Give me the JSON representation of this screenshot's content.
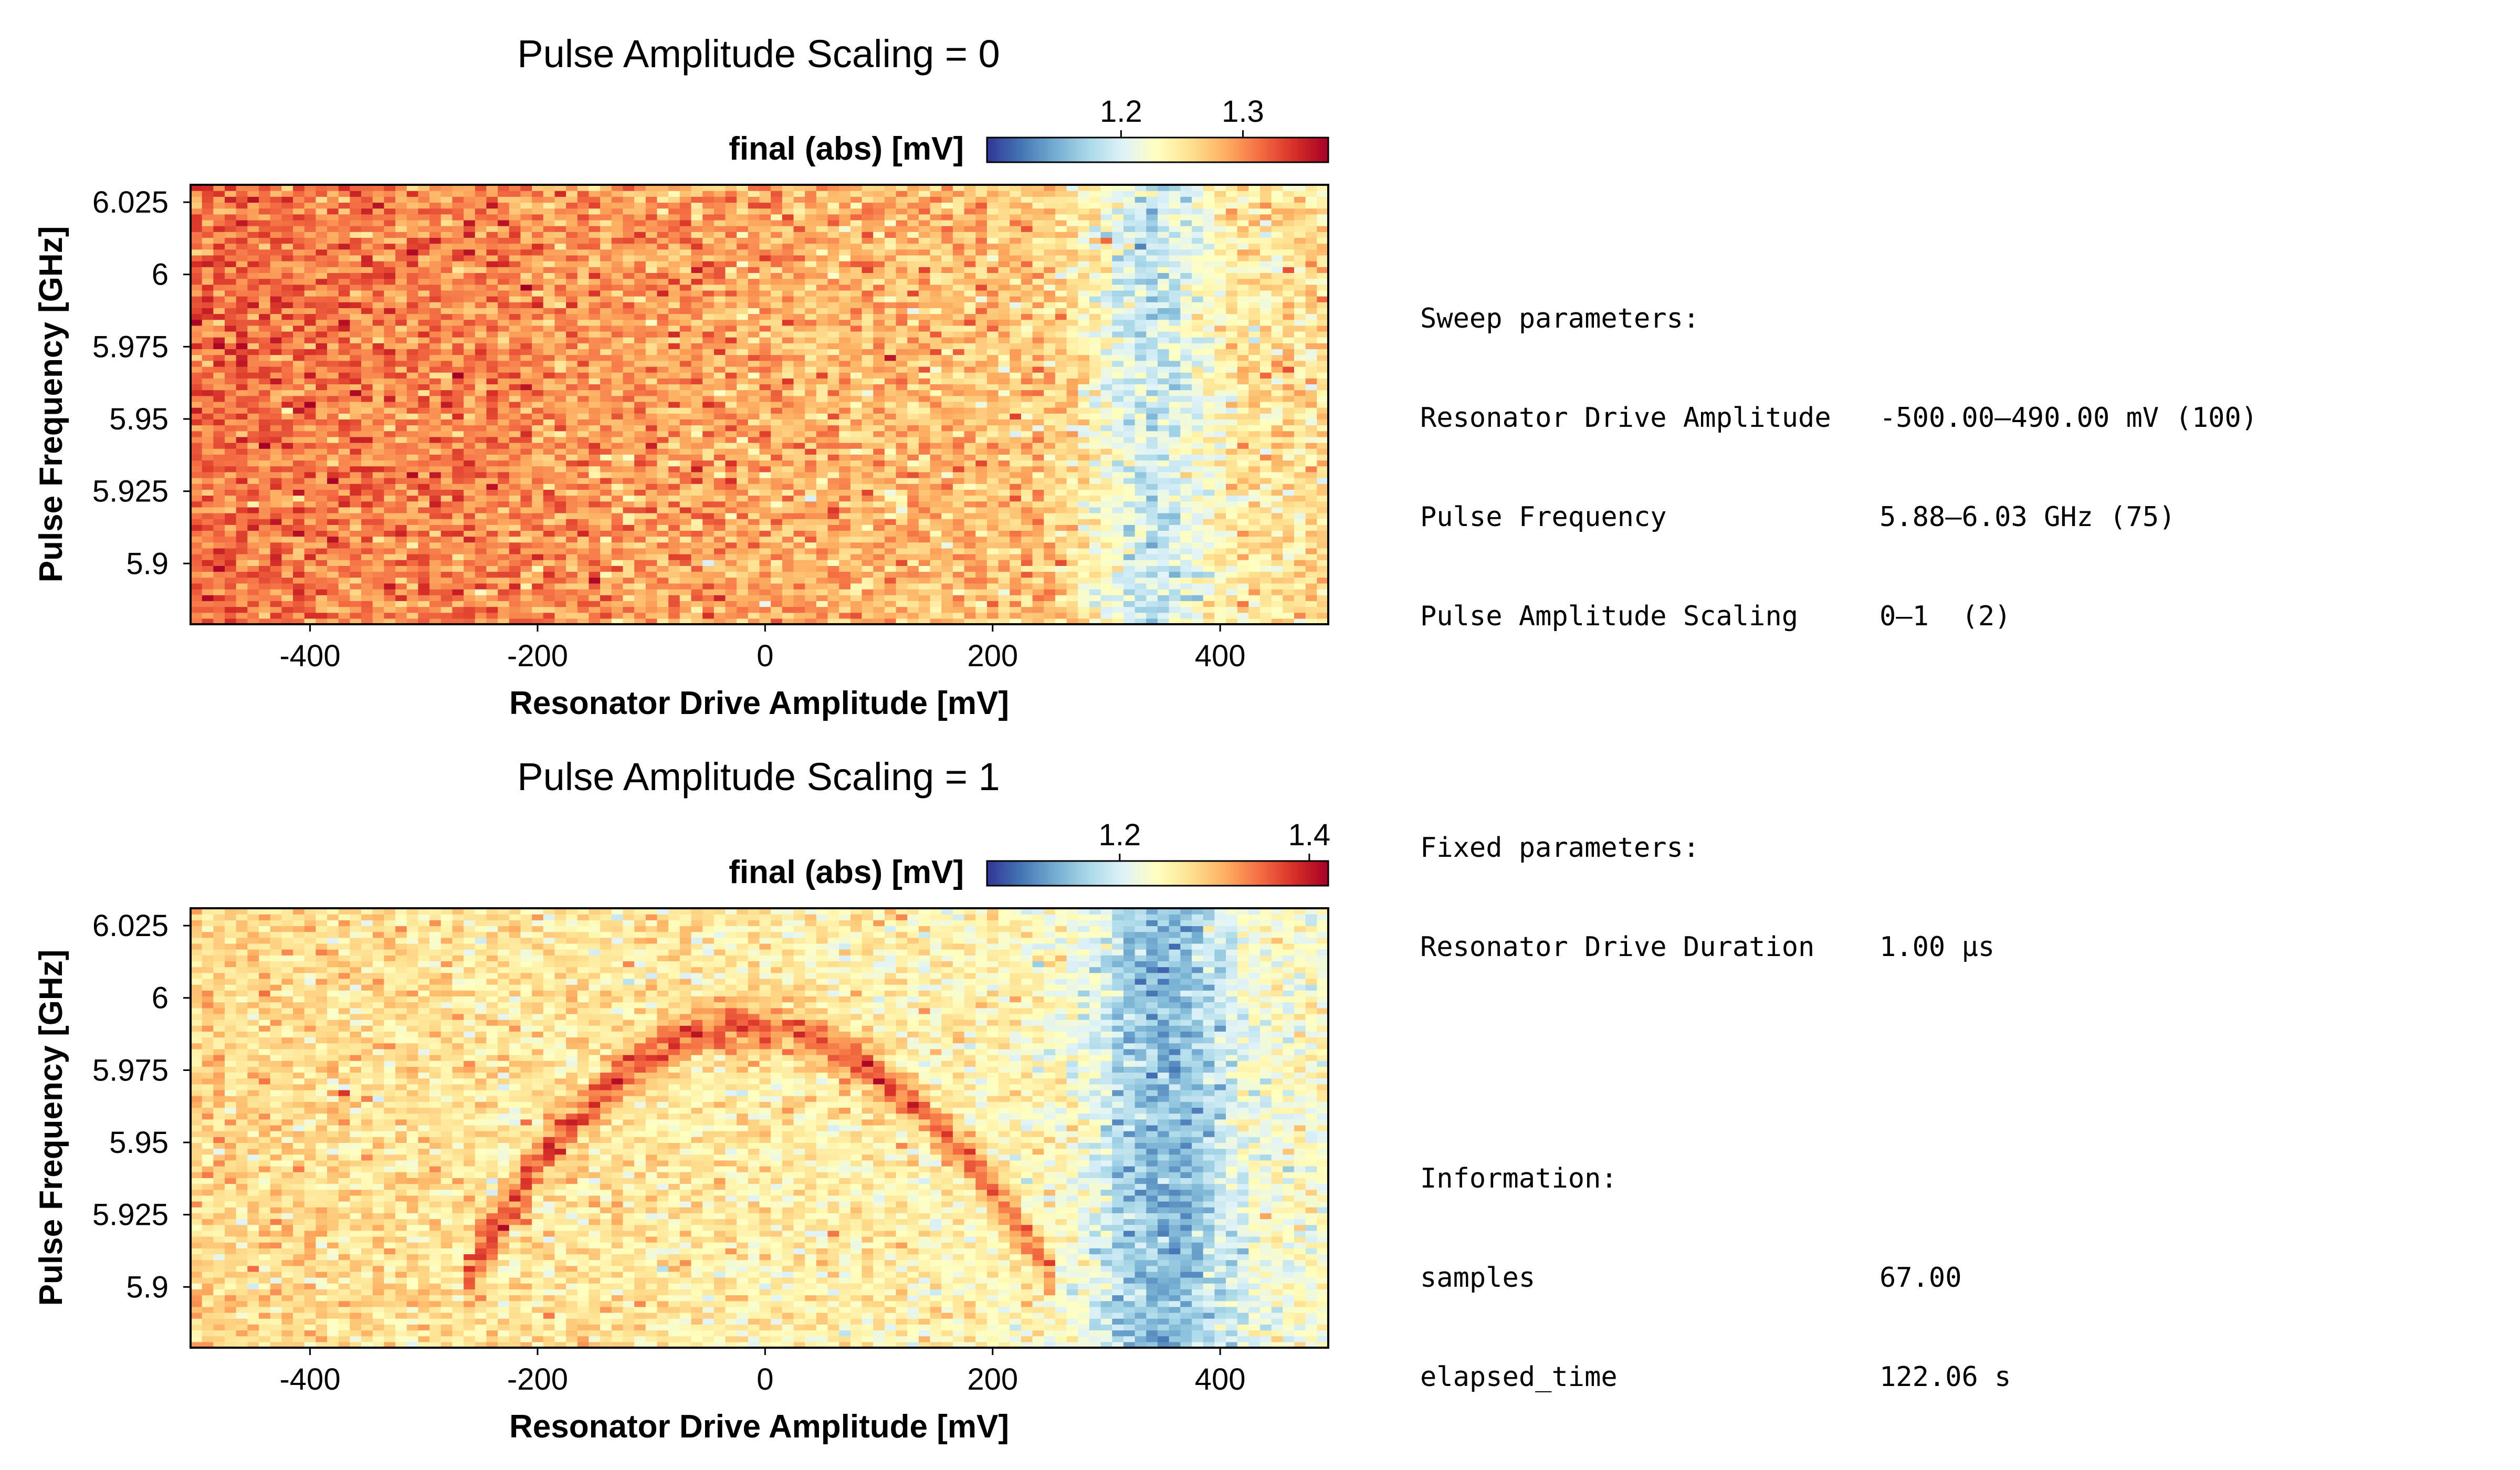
{
  "colormap": [
    "#313695",
    "#4575b4",
    "#74add1",
    "#abd9e9",
    "#e0f3f8",
    "#ffffbf",
    "#fee090",
    "#fdae61",
    "#f46d43",
    "#d73027",
    "#a50026"
  ],
  "chart_data": [
    {
      "type": "heatmap",
      "title": "Pulse Amplitude Scaling = 0",
      "xlabel": "Resonator Drive Amplitude [mV]",
      "ylabel": "Pulse Frequency [GHz]",
      "colorbar_label": "final (abs) [mV]",
      "x_range": [
        -500.0,
        490.0
      ],
      "x_points": 100,
      "y_range": [
        5.88,
        6.03
      ],
      "y_points": 75,
      "x_ticks": [
        -400,
        -200,
        0,
        200,
        400
      ],
      "x_tick_labels": [
        "-400",
        "-200",
        "0",
        "200",
        "400"
      ],
      "y_ticks": [
        5.9,
        5.925,
        5.95,
        5.975,
        6.0,
        6.025
      ],
      "y_tick_labels": [
        "5.9",
        "5.925",
        "5.95",
        "5.975",
        "6",
        "6.025"
      ],
      "clim": [
        1.09,
        1.37
      ],
      "colorbar_ticks": [
        1.2,
        1.3
      ],
      "colorbar_tick_labels": [
        "1.2",
        "1.3"
      ],
      "model": {
        "baseline_left": 1.315,
        "baseline_right": 1.255,
        "dip_center": 340,
        "dip_width": 55,
        "dip_depth": 0.075,
        "noise": 0.022,
        "arc": false
      }
    },
    {
      "type": "heatmap",
      "title": "Pulse Amplitude Scaling = 1",
      "xlabel": "Resonator Drive Amplitude [mV]",
      "ylabel": "Pulse Frequency [GHz]",
      "colorbar_label": "final (abs) [mV]",
      "x_range": [
        -500.0,
        490.0
      ],
      "x_points": 100,
      "y_range": [
        5.88,
        6.03
      ],
      "y_points": 75,
      "x_ticks": [
        -400,
        -200,
        0,
        200,
        400
      ],
      "x_tick_labels": [
        "-400",
        "-200",
        "0",
        "200",
        "400"
      ],
      "y_ticks": [
        5.9,
        5.925,
        5.95,
        5.975,
        6.0,
        6.025
      ],
      "y_tick_labels": [
        "5.9",
        "5.925",
        "5.95",
        "5.975",
        "6",
        "6.025"
      ],
      "clim": [
        1.06,
        1.42
      ],
      "colorbar_ticks": [
        1.2,
        1.4
      ],
      "colorbar_tick_labels": [
        "1.2",
        "1.4"
      ],
      "model": {
        "baseline_left": 1.28,
        "baseline_right": 1.235,
        "dip_center": 350,
        "dip_width": 60,
        "dip_depth": 0.1,
        "noise": 0.025,
        "arc": true,
        "arc_x_min": -260,
        "arc_x_max": 250,
        "arc_peak_x": -20,
        "arc_peak_y": 5.99,
        "arc_end_y": 5.905,
        "arc_width_ghz": 0.008,
        "arc_height": 0.1
      }
    }
  ],
  "info_panel": {
    "sweep_header": "Sweep parameters:",
    "sweep": [
      {
        "name": "Resonator Drive Amplitude",
        "value": "-500.00–490.00 mV (100)"
      },
      {
        "name": "Pulse Frequency",
        "value": "5.88–6.03 GHz (75)"
      },
      {
        "name": "Pulse Amplitude Scaling",
        "value": "0–1  (2)"
      }
    ],
    "fixed_header": "Fixed parameters:",
    "fixed": [
      {
        "name": "Resonator Drive Duration",
        "value": "1.00 μs"
      }
    ],
    "info_header": "Information:",
    "info": [
      {
        "name": "samples",
        "value": "67.00"
      },
      {
        "name": "elapsed_time",
        "value": "122.06 s"
      }
    ]
  }
}
